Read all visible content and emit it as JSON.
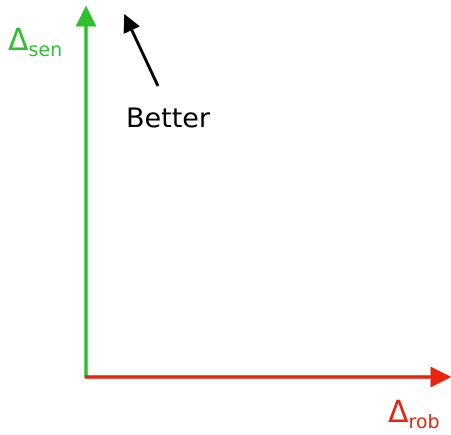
{
  "y_axis": {
    "symbol": "Δ",
    "subscript": "sen"
  },
  "x_axis": {
    "symbol": "Δ",
    "subscript": "rob"
  },
  "annotation": "Better"
}
